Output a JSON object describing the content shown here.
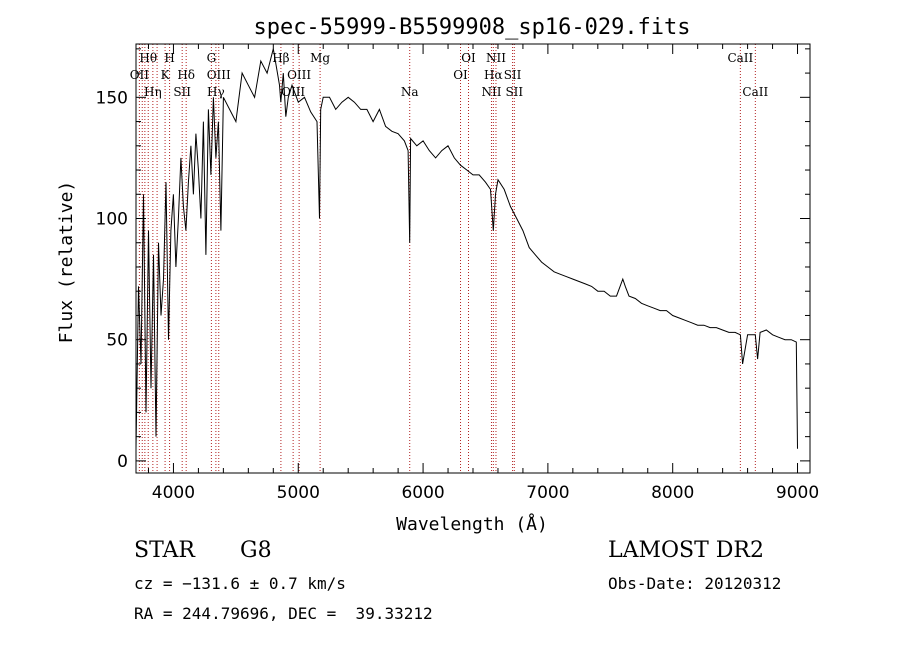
{
  "chart_data": {
    "type": "line",
    "title": "spec-55999-B5599908_sp16-029.fits",
    "xlabel": "Wavelength (Å)",
    "ylabel": "Flux (relative)",
    "xlim": [
      3700,
      9100
    ],
    "ylim": [
      -5,
      172
    ],
    "x_ticks": [
      4000,
      5000,
      6000,
      7000,
      8000,
      9000
    ],
    "y_ticks": [
      0,
      50,
      100,
      150
    ],
    "grid": false,
    "series": [
      {
        "x": [
          3700,
          3720,
          3740,
          3760,
          3780,
          3800,
          3820,
          3840,
          3860,
          3880,
          3900,
          3920,
          3940,
          3960,
          3980,
          4000,
          4020,
          4040,
          4060,
          4080,
          4100,
          4120,
          4140,
          4160,
          4180,
          4200,
          4220,
          4240,
          4260,
          4280,
          4300,
          4320,
          4340,
          4360,
          4380,
          4400,
          4450,
          4500,
          4550,
          4600,
          4650,
          4700,
          4750,
          4800,
          4850,
          4860,
          4880,
          4900,
          4920,
          4950,
          5000,
          5050,
          5100,
          5150,
          5170,
          5180,
          5200,
          5250,
          5300,
          5350,
          5400,
          5450,
          5500,
          5550,
          5600,
          5650,
          5700,
          5750,
          5800,
          5850,
          5880,
          5893,
          5900,
          5950,
          6000,
          6050,
          6100,
          6150,
          6200,
          6250,
          6300,
          6350,
          6400,
          6450,
          6500,
          6540,
          6563,
          6580,
          6600,
          6650,
          6700,
          6750,
          6800,
          6850,
          6900,
          6950,
          7000,
          7050,
          7100,
          7150,
          7200,
          7250,
          7300,
          7350,
          7400,
          7450,
          7500,
          7550,
          7600,
          7620,
          7650,
          7700,
          7750,
          7800,
          7850,
          7900,
          7950,
          8000,
          8050,
          8100,
          8150,
          8200,
          8250,
          8300,
          8350,
          8400,
          8450,
          8500,
          8542,
          8560,
          8600,
          8662,
          8680,
          8700,
          8750,
          8800,
          8850,
          8900,
          8950,
          8990,
          9000
        ],
        "y": [
          5,
          72,
          40,
          110,
          20,
          95,
          30,
          85,
          10,
          90,
          60,
          75,
          115,
          50,
          95,
          110,
          80,
          100,
          125,
          105,
          95,
          115,
          130,
          110,
          135,
          120,
          100,
          140,
          85,
          145,
          118,
          150,
          125,
          140,
          95,
          150,
          145,
          140,
          160,
          155,
          150,
          165,
          160,
          170,
          155,
          148,
          160,
          142,
          150,
          155,
          148,
          150,
          144,
          140,
          100,
          145,
          150,
          150,
          145,
          148,
          150,
          148,
          145,
          145,
          140,
          145,
          138,
          136,
          135,
          132,
          128,
          90,
          133,
          130,
          132,
          128,
          125,
          128,
          130,
          125,
          122,
          120,
          118,
          118,
          115,
          112,
          95,
          110,
          116,
          112,
          105,
          100,
          95,
          88,
          85,
          82,
          80,
          78,
          77,
          76,
          75,
          74,
          73,
          72,
          70,
          70,
          68,
          68,
          75,
          72,
          68,
          67,
          65,
          64,
          63,
          62,
          62,
          60,
          59,
          58,
          57,
          56,
          56,
          55,
          55,
          54,
          53,
          53,
          52,
          40,
          52,
          52,
          42,
          53,
          54,
          52,
          51,
          50,
          50,
          49,
          5
        ]
      }
    ],
    "vlines": [
      {
        "x": 3727,
        "label": "OII",
        "row": 1
      },
      {
        "x": 3750,
        "label": "",
        "row": 0
      },
      {
        "x": 3771,
        "label": "",
        "row": 0
      },
      {
        "x": 3798,
        "label": "Hθ",
        "row": 0
      },
      {
        "x": 3835,
        "label": "Hη",
        "row": 2
      },
      {
        "x": 3869,
        "label": "",
        "row": 0
      },
      {
        "x": 3933,
        "label": "K",
        "row": 1
      },
      {
        "x": 3969,
        "label": "H",
        "row": 0
      },
      {
        "x": 4070,
        "label": "SII",
        "row": 2
      },
      {
        "x": 4102,
        "label": "Hδ",
        "row": 1
      },
      {
        "x": 4304,
        "label": "G",
        "row": 0
      },
      {
        "x": 4340,
        "label": "Hγ",
        "row": 2
      },
      {
        "x": 4363,
        "label": "OIII",
        "row": 1
      },
      {
        "x": 4861,
        "label": "Hβ",
        "row": 0
      },
      {
        "x": 4959,
        "label": "OIII",
        "row": 2
      },
      {
        "x": 5007,
        "label": "OIII",
        "row": 1
      },
      {
        "x": 5175,
        "label": "Mg",
        "row": 0
      },
      {
        "x": 5893,
        "label": "Na",
        "row": 2
      },
      {
        "x": 6300,
        "label": "OI",
        "row": 1
      },
      {
        "x": 6364,
        "label": "OI",
        "row": 0
      },
      {
        "x": 6548,
        "label": "NII",
        "row": 2
      },
      {
        "x": 6563,
        "label": "Hα",
        "row": 1
      },
      {
        "x": 6584,
        "label": "NII",
        "row": 0
      },
      {
        "x": 6717,
        "label": "SII",
        "row": 1
      },
      {
        "x": 6731,
        "label": "SII",
        "row": 2
      },
      {
        "x": 8542,
        "label": "CaII",
        "row": 0
      },
      {
        "x": 8662,
        "label": "CaII",
        "row": 2
      }
    ]
  },
  "info": {
    "object_class": "STAR",
    "subclass": "G8",
    "survey": "LAMOST DR2",
    "cz": "cz = −131.6 ± 0.7 km/s",
    "obs_date": "Obs-Date: 20120312",
    "coords": "RA = 244.79696, DEC =  39.33212"
  },
  "colors": {
    "spectrum": "#000000",
    "line_markers": "#b22222",
    "axes": "#000000"
  }
}
